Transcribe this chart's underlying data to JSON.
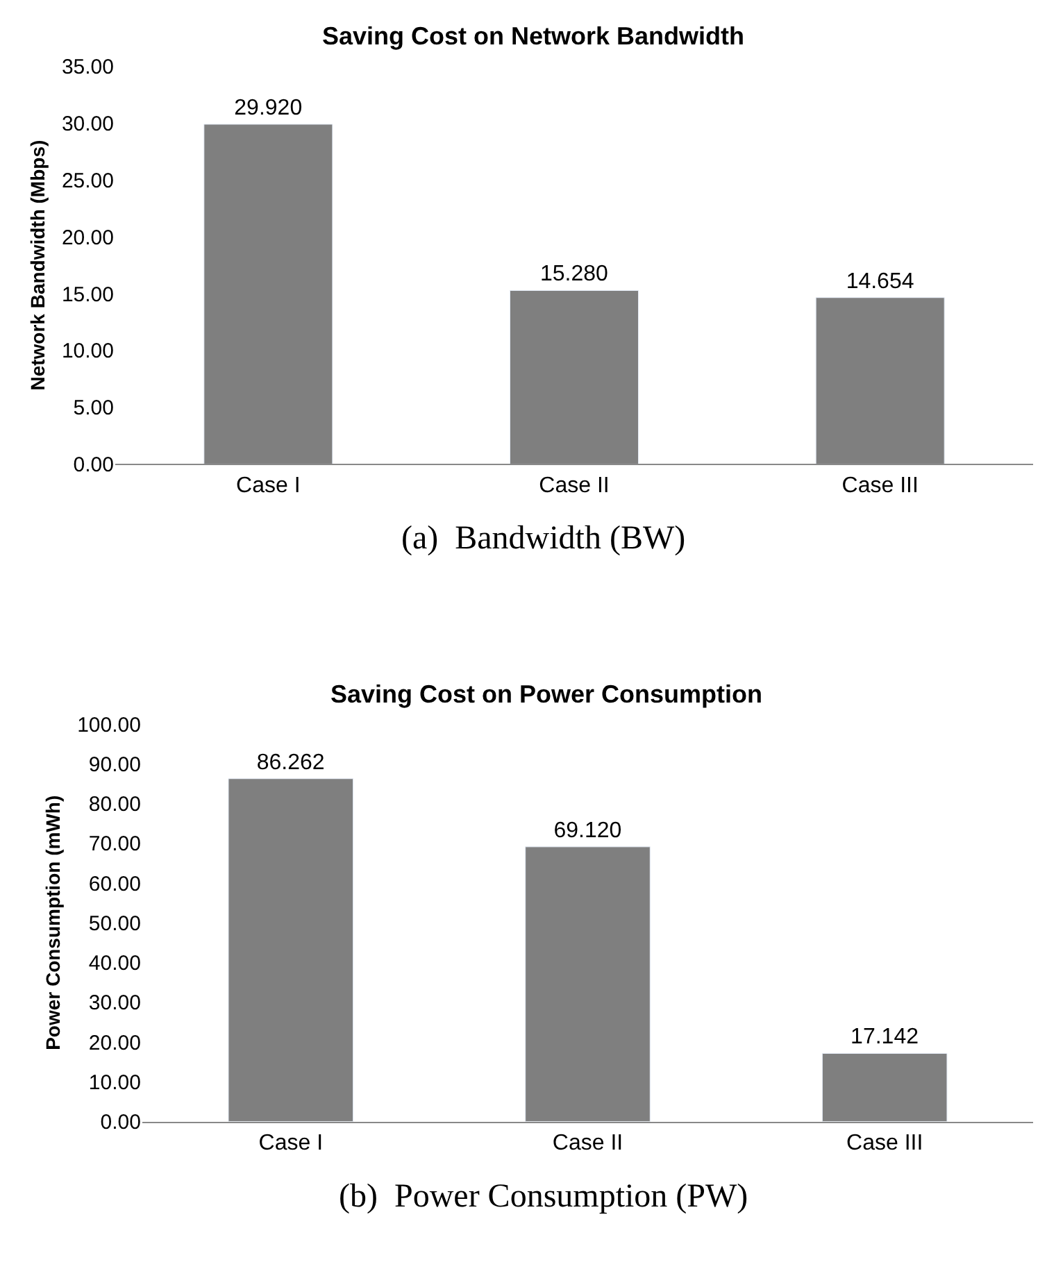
{
  "chart_data": [
    {
      "type": "bar",
      "title": "Saving Cost on Network Bandwidth",
      "ylabel": "Network Bandwidth (Mbps)",
      "categories": [
        "Case I",
        "Case II",
        "Case III"
      ],
      "values": [
        29.92,
        15.28,
        14.654
      ],
      "value_labels": [
        "29.920",
        "15.280",
        "14.654"
      ],
      "color": "#7f7f7f",
      "ylim": [
        0,
        35
      ],
      "yticks": [
        {
          "value": 0,
          "label": "0.00"
        },
        {
          "value": 5,
          "label": "5.00"
        },
        {
          "value": 10,
          "label": "10.00"
        },
        {
          "value": 15,
          "label": "15.00"
        },
        {
          "value": 20,
          "label": "20.00"
        },
        {
          "value": 25,
          "label": "25.00"
        },
        {
          "value": 30,
          "label": "30.00"
        },
        {
          "value": 35,
          "label": "35.00"
        }
      ],
      "annotations": [
        "(a)  Bandwidth (BW)"
      ]
    },
    {
      "type": "bar",
      "title": "Saving Cost on Power Consumption",
      "ylabel": "Power Consumption (mWh)",
      "categories": [
        "Case I",
        "Case II",
        "Case III"
      ],
      "values": [
        86.262,
        69.12,
        17.142
      ],
      "value_labels": [
        "86.262",
        "69.120",
        "17.142"
      ],
      "color": "#7f7f7f",
      "ylim": [
        0,
        100
      ],
      "yticks": [
        {
          "value": 0,
          "label": "0.00"
        },
        {
          "value": 10,
          "label": "10.00"
        },
        {
          "value": 20,
          "label": "20.00"
        },
        {
          "value": 30,
          "label": "30.00"
        },
        {
          "value": 40,
          "label": "40.00"
        },
        {
          "value": 50,
          "label": "50.00"
        },
        {
          "value": 60,
          "label": "60.00"
        },
        {
          "value": 70,
          "label": "70.00"
        },
        {
          "value": 80,
          "label": "80.00"
        },
        {
          "value": 90,
          "label": "90.00"
        },
        {
          "value": 100,
          "label": "100.00"
        }
      ],
      "annotations": [
        "(b)  Power Consumption (PW)"
      ]
    }
  ]
}
